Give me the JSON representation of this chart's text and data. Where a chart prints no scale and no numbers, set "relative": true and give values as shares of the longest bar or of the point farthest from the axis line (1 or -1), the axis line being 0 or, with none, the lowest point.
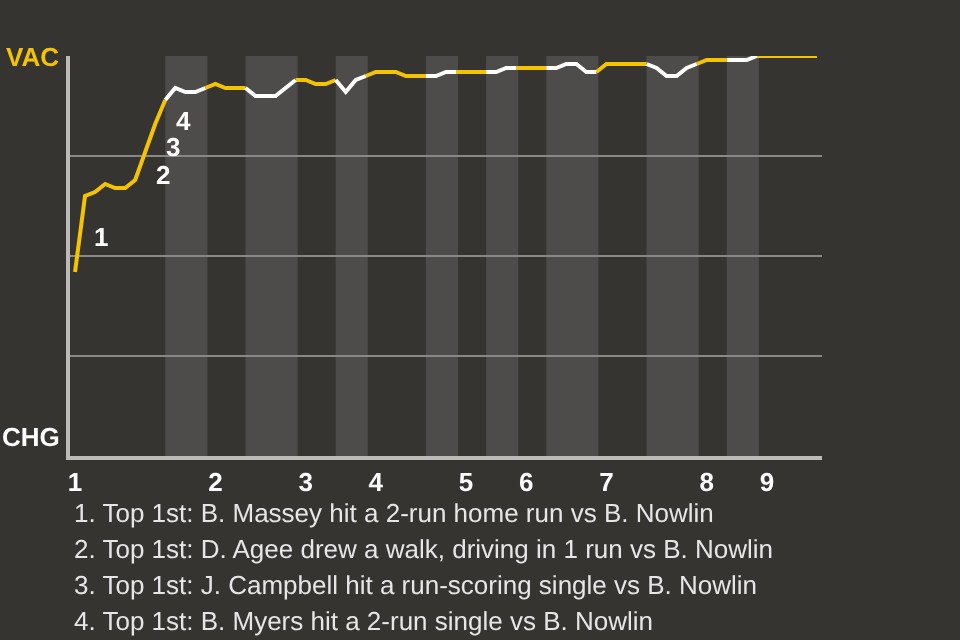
{
  "chart_data": {
    "type": "line",
    "relative": true,
    "categories": [
      "1",
      null,
      null,
      null,
      null,
      null,
      null,
      null,
      null,
      null,
      null,
      null,
      null,
      null,
      "2",
      null,
      null,
      null,
      null,
      null,
      null,
      null,
      null,
      "3",
      null,
      null,
      null,
      null,
      null,
      null,
      "4",
      null,
      null,
      null,
      null,
      null,
      null,
      null,
      null,
      "5",
      null,
      null,
      null,
      null,
      null,
      "6",
      null,
      null,
      null,
      null,
      null,
      null,
      null,
      "7",
      null,
      null,
      null,
      null,
      null,
      null,
      null,
      null,
      null,
      "8",
      null,
      null,
      null,
      null,
      null,
      "9",
      null,
      null,
      null,
      null,
      null
    ],
    "series": [
      {
        "color": "#f5c400",
        "values": [
          0.46,
          0.65,
          0.66,
          0.68,
          0.67,
          0.67,
          0.69,
          0.76,
          0.83,
          0.89,
          null,
          null,
          null,
          0.92,
          0.93,
          0.92,
          0.92,
          0.92,
          null,
          null,
          null,
          null,
          0.94,
          0.94,
          0.93,
          0.93,
          0.94,
          null,
          null,
          0.95,
          0.96,
          0.96,
          0.96,
          0.95,
          0.95,
          0.95,
          null,
          null,
          0.96,
          0.96,
          0.96,
          0.96,
          null,
          null,
          0.97,
          0.97,
          0.97,
          0.97,
          null,
          null,
          null,
          null,
          0.96,
          0.98,
          0.98,
          0.98,
          0.98,
          0.98,
          null,
          null,
          null,
          null,
          0.98,
          0.99,
          0.99,
          0.99,
          null,
          null,
          1,
          1,
          1,
          1,
          1,
          1,
          1
        ]
      },
      {
        "color": "#ffffff",
        "values": [
          null,
          null,
          null,
          null,
          null,
          null,
          null,
          null,
          null,
          0.89,
          0.92,
          0.91,
          0.91,
          0.92,
          null,
          null,
          null,
          0.92,
          0.9,
          0.9,
          0.9,
          0.92,
          0.94,
          null,
          null,
          null,
          0.94,
          0.91,
          0.94,
          0.95,
          null,
          null,
          null,
          null,
          null,
          0.95,
          0.95,
          0.96,
          0.96,
          null,
          null,
          0.96,
          0.96,
          0.97,
          0.97,
          null,
          null,
          0.97,
          0.97,
          0.98,
          0.98,
          0.96,
          0.96,
          null,
          null,
          null,
          null,
          0.98,
          0.97,
          0.95,
          0.95,
          0.97,
          0.98,
          null,
          null,
          0.99,
          0.99,
          0.99,
          1,
          null,
          null,
          null,
          null,
          null,
          null
        ]
      }
    ],
    "grid": "y",
    "marker": "none",
    "line_style": "solid",
    "annotations": [
      "VAC",
      "CHG",
      "1",
      "2",
      "3",
      "4",
      "1. Top 1st: B. Massey hit a 2-run home run vs B. Nowlin",
      "2. Top 1st: D. Agee drew a walk, driving in 1 run vs B. Nowlin",
      "3. Top 1st: J. Campbell hit a run-scoring single vs B. Nowlin",
      "4. Top 1st: B. Myers hit a 2-run single vs B. Nowlin"
    ]
  }
}
